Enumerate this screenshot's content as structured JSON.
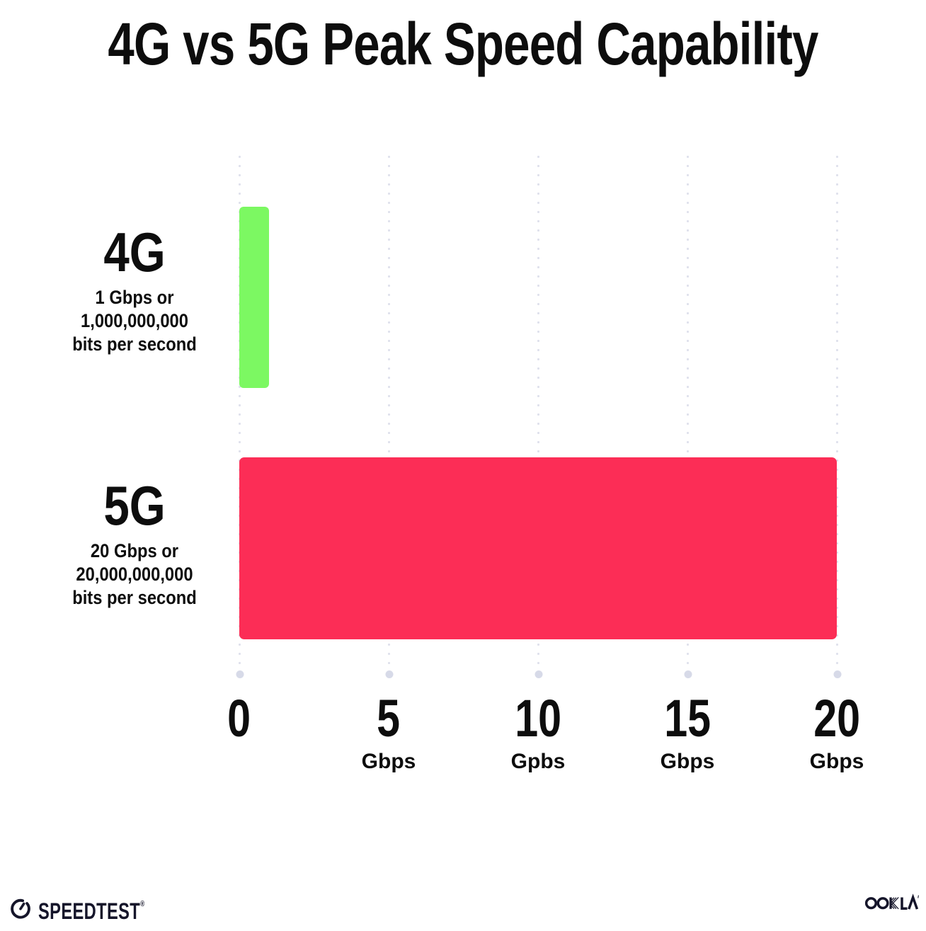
{
  "title": "4G vs 5G Peak Speed Capability",
  "rows": [
    {
      "heading": "4G",
      "desc_line1": "1 Gbps or",
      "desc_line2": "1,000,000,000",
      "desc_line3": "bits per second",
      "value_gbps": 1,
      "bar_color": "#7CF862"
    },
    {
      "heading": "5G",
      "desc_line1": "20 Gbps or",
      "desc_line2": "20,000,000,000",
      "desc_line3": "bits per second",
      "value_gbps": 20,
      "bar_color": "#FC2D56"
    }
  ],
  "axis": {
    "max_gbps": 20,
    "ticks": [
      {
        "number": "0",
        "unit": ""
      },
      {
        "number": "5",
        "unit": "Gbps"
      },
      {
        "number": "10",
        "unit": "Gpbs"
      },
      {
        "number": "15",
        "unit": "Gbps"
      },
      {
        "number": "20",
        "unit": "Gbps"
      }
    ]
  },
  "footer": {
    "speedtest_label": "SPEEDTEST",
    "speedtest_mark": "®",
    "ookla_label": "OOKLA",
    "ookla_mark": "™"
  },
  "colors": {
    "text": "#0d0d0d",
    "grid_dot": "#dfe1ec",
    "grid_end_dot": "#d7dae8",
    "bar_4g": "#7CF862",
    "bar_5g": "#FC2D56",
    "logo_ink": "#15152a"
  },
  "chart_data": {
    "type": "bar",
    "orientation": "horizontal",
    "title": "4G vs 5G Peak Speed Capability",
    "categories": [
      "4G",
      "5G"
    ],
    "values": [
      1,
      20
    ],
    "value_unit": "Gbps",
    "bar_colors": [
      "#7CF862",
      "#FC2D56"
    ],
    "annotations": [
      "1 Gbps or 1,000,000,000 bits per second",
      "20 Gbps or 20,000,000,000 bits per second"
    ],
    "xlabel": "",
    "ylabel": "",
    "xlim": [
      0,
      20
    ],
    "x_ticks": [
      0,
      5,
      10,
      15,
      20
    ],
    "x_tick_units": [
      "",
      "Gbps",
      "Gpbs",
      "Gbps",
      "Gbps"
    ],
    "grid": "dotted-vertical",
    "legend": "none"
  }
}
